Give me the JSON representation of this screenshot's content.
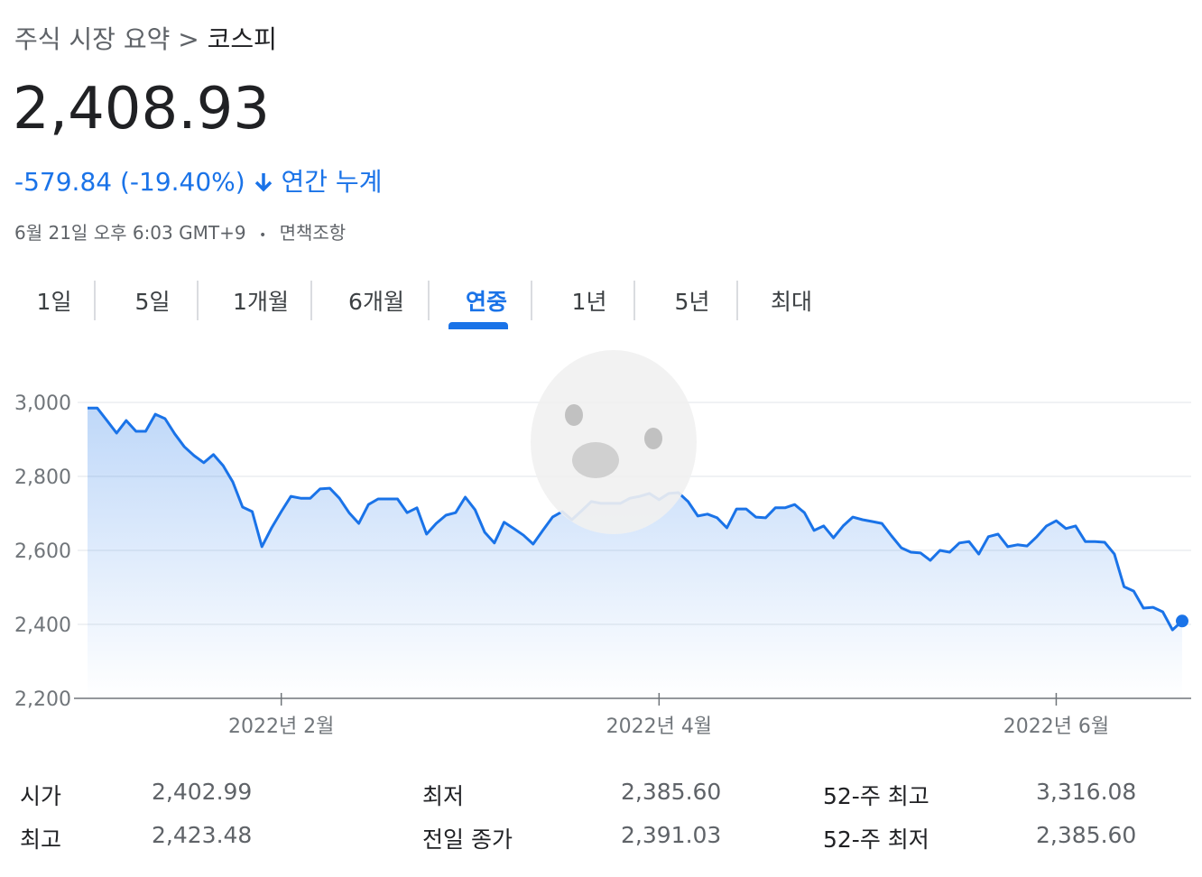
{
  "header": {
    "breadcrumb": [
      "주식 시장 요약",
      ">",
      "코스피"
    ],
    "price": "2,408.93",
    "change": "-579.84 (-19.40%)",
    "period": "연간 누계",
    "timestamp": "6월 21일 오후 6:03 GMT+9",
    "separator": "•",
    "disclaimer": "면책조항"
  },
  "tabs": {
    "items": [
      "1일",
      "5일",
      "1개월",
      "6개월",
      "연중",
      "1년",
      "5년",
      "최대"
    ],
    "selected": "연중"
  },
  "chart_data": {
    "type": "line",
    "color": "#1a73e8",
    "grid": true,
    "ylim": [
      2200,
      3000
    ],
    "yticks": [
      {
        "value": 2200,
        "label": "2,200"
      },
      {
        "value": 2400,
        "label": "2,400"
      },
      {
        "value": 2600,
        "label": "2,600"
      },
      {
        "value": 2800,
        "label": "2,800"
      },
      {
        "value": 3000,
        "label": "3,000"
      }
    ],
    "categories": [
      null,
      null,
      null,
      null,
      null,
      null,
      null,
      null,
      null,
      null,
      null,
      null,
      null,
      null,
      null,
      null,
      null,
      null,
      null,
      null,
      "2022년 2월",
      null,
      null,
      null,
      null,
      null,
      null,
      null,
      null,
      null,
      null,
      null,
      null,
      null,
      null,
      null,
      null,
      null,
      null,
      null,
      null,
      null,
      null,
      null,
      null,
      null,
      null,
      null,
      null,
      null,
      null,
      null,
      null,
      null,
      null,
      null,
      null,
      null,
      null,
      "2022년 4월",
      null,
      null,
      null,
      null,
      null,
      null,
      null,
      null,
      null,
      null,
      null,
      null,
      null,
      null,
      null,
      null,
      null,
      null,
      null,
      null,
      null,
      null,
      null,
      null,
      null,
      null,
      null,
      null,
      null,
      null,
      null,
      null,
      null,
      null,
      null,
      null,
      null,
      null,
      null,
      null,
      "2022년 6월",
      null,
      null,
      null,
      null,
      null,
      null,
      null,
      null,
      null,
      null,
      null,
      null,
      null
    ],
    "values": [
      2985,
      2985,
      2951,
      2917,
      2951,
      2922,
      2922,
      2968,
      2956,
      2915,
      2880,
      2856,
      2837,
      2859,
      2829,
      2785,
      2717,
      2705,
      2610,
      2661,
      2705,
      2746,
      2741,
      2741,
      2766,
      2768,
      2741,
      2702,
      2673,
      2724,
      2739,
      2739,
      2739,
      2702,
      2715,
      2644,
      2673,
      2695,
      2702,
      2744,
      2710,
      2649,
      2620,
      2676,
      2659,
      2641,
      2617,
      2654,
      2690,
      2705,
      2683,
      2707,
      2732,
      2727,
      2727,
      2727,
      2741,
      2746,
      2754,
      2737,
      2754,
      2756,
      2732,
      2693,
      2698,
      2688,
      2661,
      2712,
      2712,
      2690,
      2688,
      2715,
      2715,
      2724,
      2702,
      2654,
      2666,
      2634,
      2666,
      2690,
      2683,
      2678,
      2673,
      2639,
      2607,
      2595,
      2593,
      2573,
      2600,
      2595,
      2620,
      2624,
      2590,
      2637,
      2644,
      2610,
      2615,
      2612,
      2637,
      2666,
      2680,
      2659,
      2666,
      2624,
      2624,
      2622,
      2590,
      2502,
      2490,
      2444,
      2446,
      2434,
      2385,
      2409
    ]
  },
  "stats": {
    "rows": [
      [
        {
          "label": "시가",
          "value": "2,402.99"
        },
        {
          "label": "최저",
          "value": "2,385.60"
        },
        {
          "label": "52-주 최고",
          "value": "3,316.08"
        }
      ],
      [
        {
          "label": "최고",
          "value": "2,423.48"
        },
        {
          "label": "전일 종가",
          "value": "2,391.03"
        },
        {
          "label": "52-주 최저",
          "value": "2,385.60"
        }
      ]
    ]
  }
}
